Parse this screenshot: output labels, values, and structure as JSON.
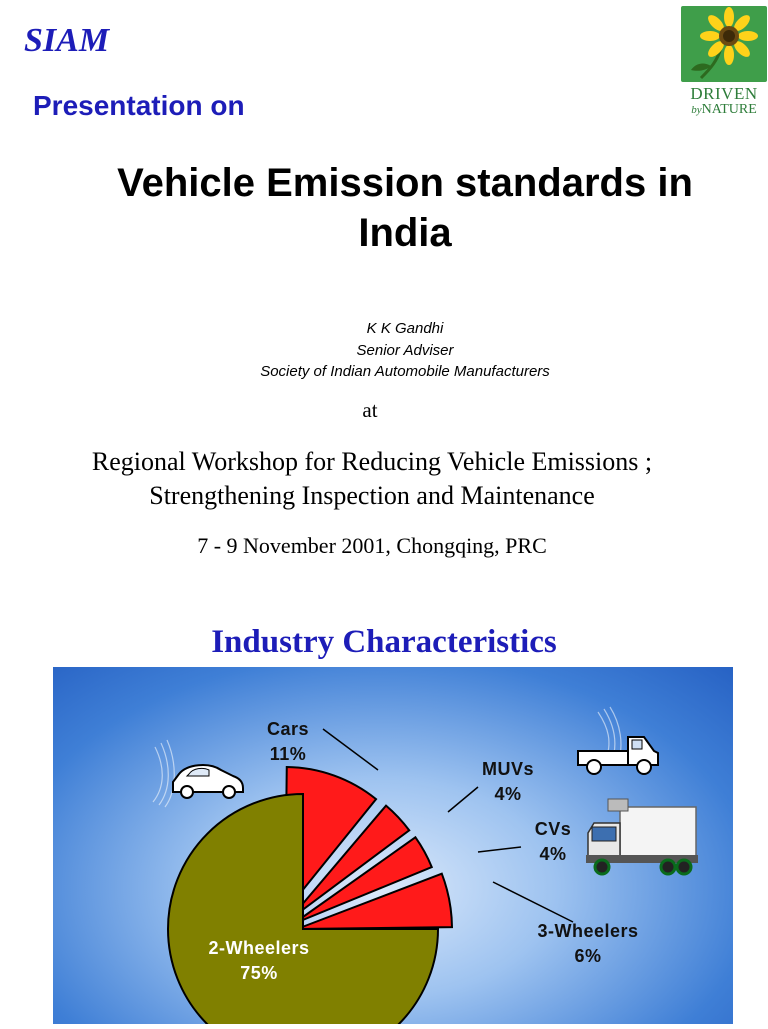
{
  "header": {
    "org": "SIAM",
    "presentation_on": "Presentation on",
    "logo": {
      "line1": "DRIVEN",
      "by": "by",
      "line2": "NATURE",
      "icon": "sunflower-icon"
    }
  },
  "title": {
    "line1": "Vehicle Emission standards in",
    "line2": "India"
  },
  "author": {
    "name": "K K Gandhi",
    "role": "Senior Adviser",
    "org": "Society of Indian Automobile Manufacturers"
  },
  "at": "at",
  "workshop": {
    "line1": "Regional Workshop for Reducing Vehicle Emissions ;",
    "line2": "Strengthening Inspection and Maintenance"
  },
  "date": "7 - 9  November 2001, Chongqing, PRC",
  "section_title": "Industry  Characteristics",
  "colors": {
    "title_blue": "#1d1db8",
    "slice_red": "#ff1a1a",
    "slice_olive": "#808000"
  },
  "chart_data": {
    "type": "pie",
    "slices": [
      {
        "name": "Cars",
        "value": 11,
        "label": "11%"
      },
      {
        "name": "MUVs",
        "value": 4,
        "label": "4%"
      },
      {
        "name": "CVs",
        "value": 4,
        "label": "4%"
      },
      {
        "name": "3-Wheelers",
        "value": 6,
        "label": "6%"
      },
      {
        "name": "2-Wheelers",
        "value": 75,
        "label": "75%"
      }
    ]
  }
}
